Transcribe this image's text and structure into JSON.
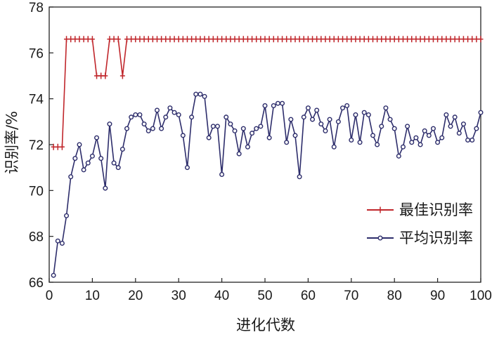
{
  "chart_data": {
    "type": "line",
    "xlabel": "进化代数",
    "ylabel": "识别率/%",
    "xlim": [
      0,
      100
    ],
    "ylim": [
      66,
      78
    ],
    "xticks": [
      0,
      10,
      20,
      30,
      40,
      50,
      60,
      70,
      80,
      90,
      100
    ],
    "yticks": [
      66,
      68,
      70,
      72,
      74,
      76,
      78
    ],
    "grid": false,
    "legend_position": "lower-right",
    "x": [
      1,
      2,
      3,
      4,
      5,
      6,
      7,
      8,
      9,
      10,
      11,
      12,
      13,
      14,
      15,
      16,
      17,
      18,
      19,
      20,
      21,
      22,
      23,
      24,
      25,
      26,
      27,
      28,
      29,
      30,
      31,
      32,
      33,
      34,
      35,
      36,
      37,
      38,
      39,
      40,
      41,
      42,
      43,
      44,
      45,
      46,
      47,
      48,
      49,
      50,
      51,
      52,
      53,
      54,
      55,
      56,
      57,
      58,
      59,
      60,
      61,
      62,
      63,
      64,
      65,
      66,
      67,
      68,
      69,
      70,
      71,
      72,
      73,
      74,
      75,
      76,
      77,
      78,
      79,
      80,
      81,
      82,
      83,
      84,
      85,
      86,
      87,
      88,
      89,
      90,
      91,
      92,
      93,
      94,
      95,
      96,
      97,
      98,
      99,
      100
    ],
    "series": [
      {
        "name": "最佳识别率",
        "color": "#c0262b",
        "marker": "plus",
        "values": [
          71.9,
          71.9,
          71.9,
          76.6,
          76.6,
          76.6,
          76.6,
          76.6,
          76.6,
          76.6,
          75.0,
          75.0,
          75.0,
          76.6,
          76.6,
          76.6,
          75.0,
          76.6,
          76.6,
          76.6,
          76.6,
          76.6,
          76.6,
          76.6,
          76.6,
          76.6,
          76.6,
          76.6,
          76.6,
          76.6,
          76.6,
          76.6,
          76.6,
          76.6,
          76.6,
          76.6,
          76.6,
          76.6,
          76.6,
          76.6,
          76.6,
          76.6,
          76.6,
          76.6,
          76.6,
          76.6,
          76.6,
          76.6,
          76.6,
          76.6,
          76.6,
          76.6,
          76.6,
          76.6,
          76.6,
          76.6,
          76.6,
          76.6,
          76.6,
          76.6,
          76.6,
          76.6,
          76.6,
          76.6,
          76.6,
          76.6,
          76.6,
          76.6,
          76.6,
          76.6,
          76.6,
          76.6,
          76.6,
          76.6,
          76.6,
          76.6,
          76.6,
          76.6,
          76.6,
          76.6,
          76.6,
          76.6,
          76.6,
          76.6,
          76.6,
          76.6,
          76.6,
          76.6,
          76.6,
          76.6,
          76.6,
          76.6,
          76.6,
          76.6,
          76.6,
          76.6,
          76.6,
          76.6,
          76.6,
          76.6
        ]
      },
      {
        "name": "平均识别率",
        "color": "#2d2d6b",
        "marker": "circle",
        "values": [
          66.3,
          67.8,
          67.7,
          68.9,
          70.6,
          71.4,
          72.0,
          70.9,
          71.2,
          71.5,
          72.3,
          71.4,
          70.1,
          72.9,
          71.2,
          71.0,
          71.8,
          72.7,
          73.2,
          73.3,
          73.3,
          72.9,
          72.6,
          72.7,
          73.5,
          72.7,
          73.2,
          73.6,
          73.4,
          73.3,
          72.4,
          71.0,
          73.2,
          74.2,
          74.2,
          74.1,
          72.3,
          72.8,
          72.8,
          70.7,
          73.2,
          72.9,
          72.6,
          71.6,
          72.7,
          71.9,
          72.5,
          72.7,
          72.8,
          73.7,
          72.3,
          73.7,
          73.8,
          73.8,
          72.1,
          73.1,
          72.4,
          70.6,
          73.2,
          73.6,
          73.1,
          73.5,
          72.9,
          72.6,
          73.1,
          71.9,
          73.0,
          73.6,
          73.7,
          72.2,
          73.3,
          72.1,
          73.4,
          73.3,
          72.4,
          72.0,
          72.8,
          73.6,
          73.1,
          72.7,
          71.5,
          71.9,
          72.8,
          72.1,
          72.3,
          72.0,
          72.6,
          72.4,
          72.7,
          72.1,
          72.3,
          73.3,
          72.8,
          73.2,
          72.5,
          72.9,
          72.2,
          72.2,
          72.7,
          73.4
        ]
      }
    ]
  }
}
